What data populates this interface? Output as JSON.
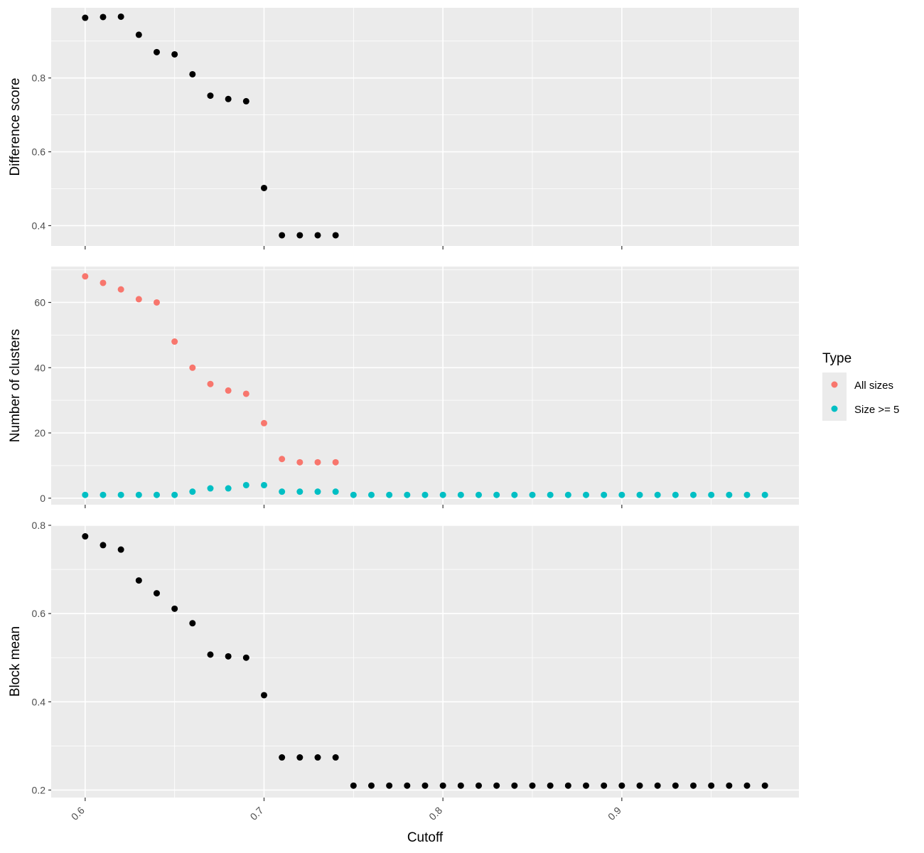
{
  "chart_data": {
    "type": "scatter",
    "xlabel": "Cutoff",
    "x_ticks": [
      "0.6",
      "0.7",
      "0.8",
      "0.9"
    ],
    "xlim": [
      0.581,
      0.999
    ],
    "grid": true,
    "legend": {
      "title": "Type",
      "placement": "right",
      "entries": [
        {
          "label": "All sizes",
          "color": "#F8766D"
        },
        {
          "label": "Size >= 5",
          "color": "#00BFC4"
        }
      ]
    },
    "panels": [
      {
        "ylabel": "Difference score",
        "ylim": [
          0.345,
          0.99
        ],
        "y_ticks": [
          "0.4",
          "0.6",
          "0.8"
        ],
        "series": [
          {
            "color": "#000000",
            "x": [
              0.6,
              0.61,
              0.62,
              0.63,
              0.64,
              0.65,
              0.66,
              0.67,
              0.68,
              0.69,
              0.7,
              0.71,
              0.72,
              0.73,
              0.74
            ],
            "y": [
              0.963,
              0.965,
              0.966,
              0.917,
              0.87,
              0.864,
              0.81,
              0.752,
              0.743,
              0.737,
              0.502,
              0.374,
              0.374,
              0.374,
              0.374
            ]
          }
        ]
      },
      {
        "ylabel": "Number of clusters",
        "ylim": [
          -2,
          71
        ],
        "y_ticks": [
          "0",
          "20",
          "40",
          "60"
        ],
        "series": [
          {
            "name": "All sizes",
            "color": "#F8766D",
            "x": [
              0.6,
              0.61,
              0.62,
              0.63,
              0.64,
              0.65,
              0.66,
              0.67,
              0.68,
              0.69,
              0.7,
              0.71,
              0.72,
              0.73,
              0.74
            ],
            "y": [
              68,
              66,
              64,
              61,
              60,
              48,
              40,
              35,
              33,
              32,
              23,
              12,
              11,
              11,
              11
            ]
          },
          {
            "name": "Size >= 5",
            "color": "#00BFC4",
            "x": [
              0.6,
              0.61,
              0.62,
              0.63,
              0.64,
              0.65,
              0.66,
              0.67,
              0.68,
              0.69,
              0.7,
              0.71,
              0.72,
              0.73,
              0.74,
              0.75,
              0.76,
              0.77,
              0.78,
              0.79,
              0.8,
              0.81,
              0.82,
              0.83,
              0.84,
              0.85,
              0.86,
              0.87,
              0.88,
              0.89,
              0.9,
              0.91,
              0.92,
              0.93,
              0.94,
              0.95,
              0.96,
              0.97,
              0.98
            ],
            "y": [
              1,
              1,
              1,
              1,
              1,
              1,
              2,
              3,
              3,
              4,
              4,
              2,
              2,
              2,
              2,
              1,
              1,
              1,
              1,
              1,
              1,
              1,
              1,
              1,
              1,
              1,
              1,
              1,
              1,
              1,
              1,
              1,
              1,
              1,
              1,
              1,
              1,
              1,
              1
            ]
          }
        ]
      },
      {
        "ylabel": "Block mean",
        "ylim": [
          0.183,
          0.8
        ],
        "y_ticks": [
          "0.2",
          "0.4",
          "0.6",
          "0.8"
        ],
        "series": [
          {
            "color": "#000000",
            "x": [
              0.6,
              0.61,
              0.62,
              0.63,
              0.64,
              0.65,
              0.66,
              0.67,
              0.68,
              0.69,
              0.7,
              0.71,
              0.72,
              0.73,
              0.74,
              0.75,
              0.76,
              0.77,
              0.78,
              0.79,
              0.8,
              0.81,
              0.82,
              0.83,
              0.84,
              0.85,
              0.86,
              0.87,
              0.88,
              0.89,
              0.9,
              0.91,
              0.92,
              0.93,
              0.94,
              0.95,
              0.96,
              0.97,
              0.98
            ],
            "y": [
              0.775,
              0.755,
              0.745,
              0.675,
              0.646,
              0.611,
              0.578,
              0.507,
              0.503,
              0.5,
              0.415,
              0.274,
              0.274,
              0.274,
              0.274,
              0.21,
              0.21,
              0.21,
              0.21,
              0.21,
              0.21,
              0.21,
              0.21,
              0.21,
              0.21,
              0.21,
              0.21,
              0.21,
              0.21,
              0.21,
              0.21,
              0.21,
              0.21,
              0.21,
              0.21,
              0.21,
              0.21,
              0.21,
              0.21
            ]
          }
        ]
      }
    ]
  }
}
